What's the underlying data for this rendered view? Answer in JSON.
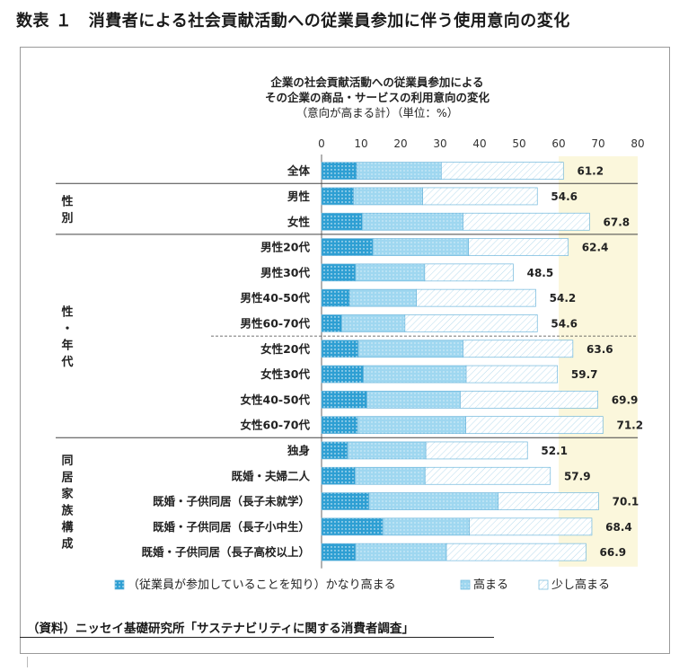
{
  "page_title": "数表 １　消費者による社会貢献活動への従業員参加に伴う使用意向の変化",
  "source_note": "（資料）ニッセイ基礎研究所「サステナビリティに関する消費者調査」",
  "colors": {
    "very_high": "#2e9fd3",
    "high": "#9fd7f0",
    "slightly_high": "#ffffff",
    "bar_outline": "#6fb7dc",
    "band": "#fbf7dc",
    "divider": "#444444"
  },
  "chart_data": {
    "type": "bar",
    "orientation": "horizontal",
    "stacked": true,
    "title_lines": [
      "企業の社会貢献活動への従業員参加による",
      "その企業の商品・サービスの利用意向の変化",
      "（意向が高まる計）（単位：%）"
    ],
    "xlim": [
      0,
      80
    ],
    "xticks": [
      "0",
      "10",
      "20",
      "30",
      "40",
      "50",
      "60",
      "70",
      "80"
    ],
    "xlabel": "",
    "ylabel": "",
    "grid": false,
    "legend_position": "bottom",
    "groups": [
      {
        "label": "",
        "start": 0,
        "end": 0
      },
      {
        "label": "性別",
        "start": 1,
        "end": 2
      },
      {
        "label": "性・年代",
        "start": 3,
        "end": 10
      },
      {
        "label": "同居家族構成",
        "start": 11,
        "end": 15
      }
    ],
    "categories": [
      "全体",
      "男性",
      "女性",
      "男性20代",
      "男性30代",
      "男性40-50代",
      "男性60-70代",
      "女性20代",
      "女性30代",
      "女性40-50代",
      "女性60-70代",
      "独身",
      "既婚・夫婦二人",
      "既婚・子供同居（長子未就学）",
      "既婚・子供同居（長子小中生）",
      "既婚・子供同居（長子高校以上）"
    ],
    "series": [
      {
        "name": "（従業員が参加していることを知り）かなり高まる",
        "values": [
          8.9,
          8.1,
          10.3,
          13.0,
          8.6,
          7.1,
          5.1,
          9.3,
          10.6,
          11.5,
          9.1,
          6.6,
          8.5,
          12.0,
          15.5,
          8.6
        ]
      },
      {
        "name": "高まる",
        "values": [
          21.4,
          17.5,
          25.5,
          24.2,
          17.5,
          16.9,
          16.0,
          26.5,
          26.0,
          23.6,
          27.4,
          19.8,
          17.7,
          32.7,
          21.9,
          23.0
        ]
      },
      {
        "name": "少し高まる",
        "values": [
          30.9,
          29.0,
          32.0,
          25.2,
          22.4,
          30.2,
          33.5,
          27.8,
          23.1,
          34.8,
          34.7,
          25.7,
          31.7,
          25.4,
          31.0,
          35.3
        ]
      }
    ],
    "totals": [
      "61.2",
      "54.6",
      "67.8",
      "62.4",
      "48.5",
      "54.2",
      "54.6",
      "63.6",
      "59.7",
      "69.9",
      "71.2",
      "52.1",
      "57.9",
      "70.1",
      "68.4",
      "66.9"
    ]
  }
}
